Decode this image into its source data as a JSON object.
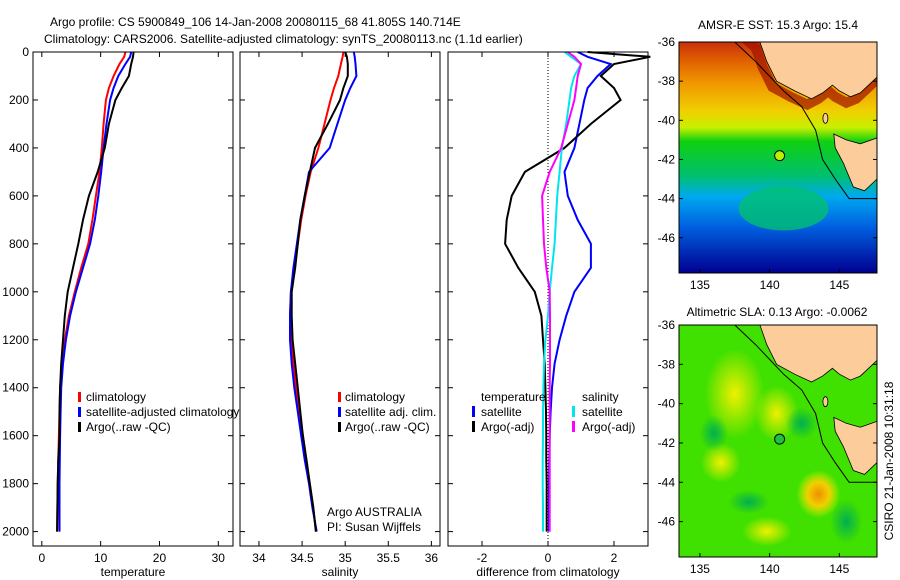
{
  "title_line1": "Argo profile: CS 5900849_106 14-Jan-2008 20080115_68 41.805S 140.714E",
  "title_line2": "Climatology: CARS2006. Satellite-adjusted climatology: synTS_20080113.nc (1.1d earlier)",
  "side_stamp": "CSIRO 21-Jan-2008 10:31:18",
  "colors": {
    "climatology": "#ff0000",
    "satellite": "#0000ff",
    "argo": "#000000",
    "sal_satellite": "#00e5ee",
    "sal_argo": "#ff00ff",
    "land": "#fccc9a"
  },
  "chart_data": [
    {
      "type": "line",
      "xlabel": "temperature",
      "ylabel": "",
      "xlim": [
        -1.5,
        32.5
      ],
      "ylim": [
        0,
        2060
      ],
      "y_reversed": true,
      "xticks": [
        0,
        10,
        20,
        30
      ],
      "xtick_labels": [
        "0",
        "10",
        "20",
        "30"
      ],
      "yticks": [
        0,
        200,
        400,
        600,
        800,
        1000,
        1200,
        1400,
        1600,
        1800,
        2000
      ],
      "ytick_labels": [
        "0",
        "200",
        "400",
        "600",
        "800",
        "1000",
        "1200",
        "1400",
        "1600",
        "1800",
        "2000"
      ],
      "depth": [
        0,
        20,
        50,
        100,
        150,
        200,
        300,
        400,
        500,
        600,
        700,
        800,
        900,
        1000,
        1100,
        1200,
        1300,
        1400,
        1500,
        1600,
        1700,
        1800,
        1900,
        2000
      ],
      "series": [
        {
          "name": "climatology",
          "color": "#ff0000",
          "values": [
            14.2,
            14.0,
            13.2,
            12.2,
            11.4,
            10.9,
            10.5,
            10.2,
            9.8,
            9.2,
            8.6,
            7.9,
            6.7,
            5.6,
            4.6,
            3.9,
            3.4,
            3.1,
            3.0,
            2.9,
            2.8,
            2.7,
            2.65,
            2.6
          ]
        },
        {
          "name": "satellite-adjusted climatology",
          "color": "#0000ff",
          "values": [
            15.2,
            15.0,
            14.2,
            13.0,
            12.2,
            11.6,
            11.0,
            10.5,
            10.1,
            9.6,
            9.0,
            8.2,
            7.0,
            5.8,
            4.8,
            4.1,
            3.6,
            3.3,
            3.2,
            3.1,
            3.05,
            3.0,
            3.0,
            3.0
          ]
        },
        {
          "name": "Argo(..raw -QC)",
          "color": "#000000",
          "values": [
            15.6,
            15.5,
            15.2,
            14.8,
            13.6,
            12.5,
            11.4,
            10.7,
            9.5,
            8.0,
            7.0,
            6.2,
            5.3,
            4.4,
            3.9,
            3.6,
            3.3,
            3.1,
            3.0,
            3.0,
            2.8,
            2.7,
            2.65,
            2.6
          ]
        }
      ],
      "legend": {
        "position": "lower-right",
        "entries": [
          "climatology",
          "satellite-adjusted climatology",
          "Argo(..raw -QC)"
        ]
      }
    },
    {
      "type": "line",
      "xlabel": "salinity",
      "xlim": [
        33.78,
        36.1
      ],
      "ylim": [
        0,
        2060
      ],
      "y_reversed": true,
      "xticks": [
        34,
        34.5,
        35,
        35.5,
        36
      ],
      "xtick_labels": [
        "34",
        "34.5",
        "35",
        "35.5",
        "36"
      ],
      "depth": [
        0,
        20,
        50,
        100,
        150,
        200,
        300,
        400,
        500,
        600,
        700,
        800,
        900,
        1000,
        1100,
        1200,
        1300,
        1400,
        1500,
        1600,
        1700,
        1800,
        1900,
        2000
      ],
      "series": [
        {
          "name": "climatology",
          "color": "#ff0000",
          "values": [
            34.98,
            34.97,
            34.95,
            34.92,
            34.87,
            34.83,
            34.76,
            34.69,
            34.6,
            34.54,
            34.49,
            34.45,
            34.41,
            34.37,
            34.36,
            34.37,
            34.4,
            34.43,
            34.47,
            34.51,
            34.55,
            34.59,
            34.63,
            34.66
          ]
        },
        {
          "name": "satellite adj. clim.",
          "color": "#0000ff",
          "values": [
            35.1,
            35.11,
            35.12,
            35.13,
            35.06,
            35.0,
            34.91,
            34.82,
            34.58,
            34.53,
            34.48,
            34.44,
            34.4,
            34.37,
            34.36,
            34.36,
            34.38,
            34.41,
            34.45,
            34.49,
            34.53,
            34.58,
            34.62,
            34.67
          ]
        },
        {
          "name": "Argo(..raw -QC)",
          "color": "#000000",
          "values": [
            35.0,
            35.02,
            35.03,
            35.03,
            34.98,
            34.94,
            34.8,
            34.65,
            34.59,
            34.53,
            34.48,
            34.45,
            34.42,
            34.38,
            34.38,
            34.39,
            34.42,
            34.45,
            34.48,
            34.51,
            34.55,
            34.59,
            34.63,
            34.66
          ]
        }
      ],
      "legend": {
        "position": "lower-right",
        "entries": [
          "climatology",
          "satellite adj. clim.",
          "Argo(..raw -QC)"
        ]
      },
      "annotations": [
        "Argo AUSTRALIA",
        "PI: Susan Wijffels"
      ]
    },
    {
      "type": "line",
      "xlabel": "difference from climatology",
      "xlim": [
        -3.03,
        3.03
      ],
      "ylim": [
        0,
        2060
      ],
      "y_reversed": true,
      "xticks": [
        -2,
        0,
        2
      ],
      "xtick_labels": [
        "-2",
        "0",
        "2"
      ],
      "zero_line": "dotted",
      "depth": [
        0,
        20,
        50,
        100,
        150,
        200,
        300,
        400,
        500,
        600,
        700,
        800,
        900,
        1000,
        1100,
        1200,
        1300,
        1400,
        1500,
        1600,
        1700,
        1800,
        1900,
        2000
      ],
      "series": [
        {
          "name": "temperature satellite",
          "color": "#0000ff",
          "values": [
            0.9,
            1.2,
            1.9,
            1.5,
            1.2,
            1.1,
            0.95,
            0.8,
            0.5,
            0.6,
            0.9,
            1.3,
            1.3,
            0.8,
            0.55,
            0.35,
            0.2,
            0.12,
            0.08,
            0.05,
            0.04,
            0.03,
            0.03,
            0.03
          ]
        },
        {
          "name": "temperature Argo(-adj)",
          "color": "#000000",
          "values": [
            1.2,
            3.1,
            2.0,
            1.6,
            2.0,
            2.2,
            1.3,
            0.5,
            -0.7,
            -1.1,
            -1.25,
            -1.3,
            -0.9,
            -0.4,
            -0.2,
            -0.15,
            -0.1,
            -0.08,
            -0.06,
            -0.05,
            -0.05,
            -0.04,
            -0.04,
            -0.04
          ]
        },
        {
          "name": "salinity satellite",
          "color": "#00e5ee",
          "values": [
            0.5,
            0.7,
            1.0,
            0.8,
            0.7,
            0.65,
            0.55,
            0.42,
            0.35,
            0.28,
            0.24,
            0.2,
            0.12,
            0.05,
            0.0,
            -0.08,
            -0.12,
            -0.14,
            -0.15,
            -0.15,
            -0.16,
            -0.16,
            -0.15,
            -0.15
          ]
        },
        {
          "name": "salinity Argo(-adj)",
          "color": "#ff00ff",
          "values": [
            0.6,
            0.8,
            1.0,
            0.9,
            0.85,
            0.8,
            0.6,
            0.4,
            0.05,
            -0.18,
            -0.15,
            -0.12,
            -0.05,
            0.05,
            0.06,
            0.06,
            0.06,
            0.05,
            0.05,
            0.05,
            0.05,
            0.05,
            0.05,
            0.05
          ]
        }
      ],
      "legend": {
        "position": "lower-center",
        "headers": [
          "temperature",
          "salinity"
        ],
        "entries": [
          "satellite",
          "Argo(-adj)",
          "satellite",
          "Argo(-adj)"
        ]
      }
    },
    {
      "type": "heatmap",
      "title": "AMSR-E SST: 15.3 Argo: 15.4",
      "xlim": [
        133.5,
        147.7
      ],
      "ylim": [
        -47.8,
        -36
      ],
      "xticks": [
        135,
        140,
        145
      ],
      "xtick_labels": [
        "135",
        "140",
        "145"
      ],
      "yticks": [
        -36,
        -38,
        -40,
        -42,
        -44,
        -46
      ],
      "ytick_labels": [
        "-36",
        "-38",
        "-40",
        "-42",
        "-44",
        "-46"
      ],
      "marker": {
        "lon": 140.714,
        "lat": -41.805
      }
    },
    {
      "type": "heatmap",
      "title": "Altimetric SLA: 0.13 Argo: -0.0062",
      "xlim": [
        133.5,
        147.7
      ],
      "ylim": [
        -47.8,
        -36
      ],
      "xticks": [
        135,
        140,
        145
      ],
      "xtick_labels": [
        "135",
        "140",
        "145"
      ],
      "yticks": [
        -36,
        -38,
        -40,
        -42,
        -44,
        -46
      ],
      "ytick_labels": [
        "-36",
        "-38",
        "-40",
        "-42",
        "-44",
        "-46"
      ],
      "marker": {
        "lon": 140.714,
        "lat": -41.805
      }
    }
  ]
}
